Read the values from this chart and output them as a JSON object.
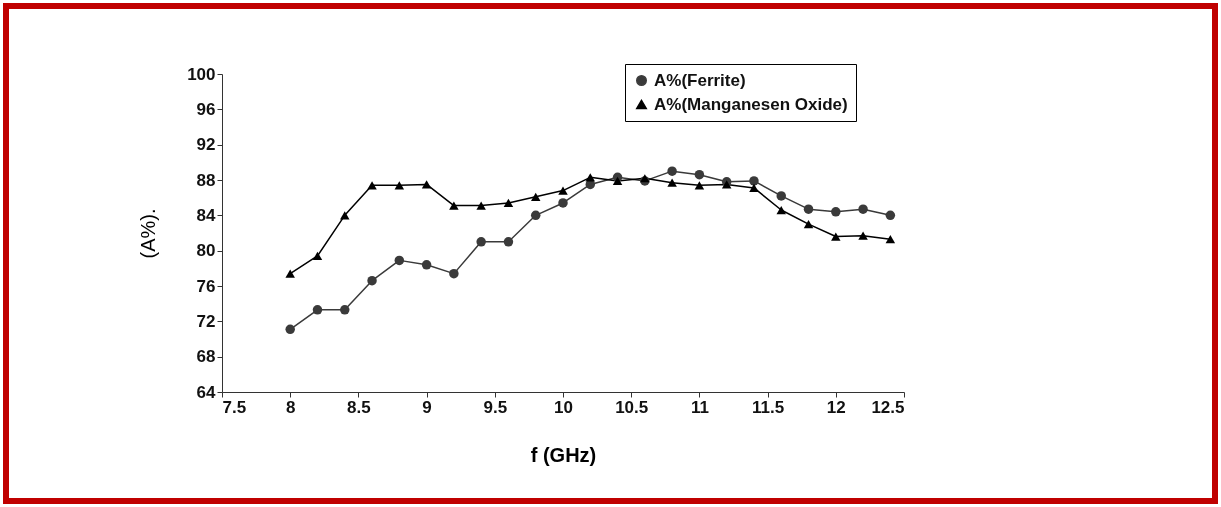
{
  "chart_data": {
    "type": "line",
    "xlabel": "f (GHz)",
    "ylabel": "(A%).",
    "x": [
      8,
      8.2,
      8.4,
      8.6,
      8.8,
      9,
      9.2,
      9.4,
      9.6,
      9.8,
      10,
      10.2,
      10.4,
      10.6,
      10.8,
      11,
      11.2,
      11.4,
      11.6,
      11.8,
      12,
      12.2,
      12.4
    ],
    "series": [
      {
        "name": "A%(Ferrite)",
        "color": "#3a3a3a",
        "marker": "circle",
        "values": [
          71.1,
          73.3,
          73.3,
          76.6,
          78.9,
          78.4,
          77.4,
          81.0,
          81.0,
          84.0,
          85.4,
          87.5,
          88.3,
          87.9,
          89.0,
          88.6,
          87.8,
          87.9,
          86.2,
          84.7,
          84.4,
          84.7,
          84.0
        ]
      },
      {
        "name": "A%(Manganesen Oxide)",
        "color": "#000000",
        "marker": "triangle",
        "values": [
          77.4,
          79.4,
          84.0,
          87.4,
          87.4,
          87.5,
          85.1,
          85.1,
          85.4,
          86.1,
          86.8,
          88.3,
          87.9,
          88.2,
          87.7,
          87.4,
          87.5,
          87.1,
          84.6,
          83.0,
          81.6,
          81.7,
          81.3
        ]
      }
    ],
    "xlim": [
      7.5,
      12.5
    ],
    "xticks": [
      7.5,
      8,
      8.5,
      9,
      9.5,
      10,
      10.5,
      11,
      11.5,
      12,
      12.5
    ],
    "ylim": [
      64,
      100
    ],
    "yticks": [
      64,
      68,
      72,
      76,
      80,
      84,
      88,
      92,
      96,
      100
    ],
    "grid": false,
    "legend": "top right",
    "line_style": "solid"
  }
}
